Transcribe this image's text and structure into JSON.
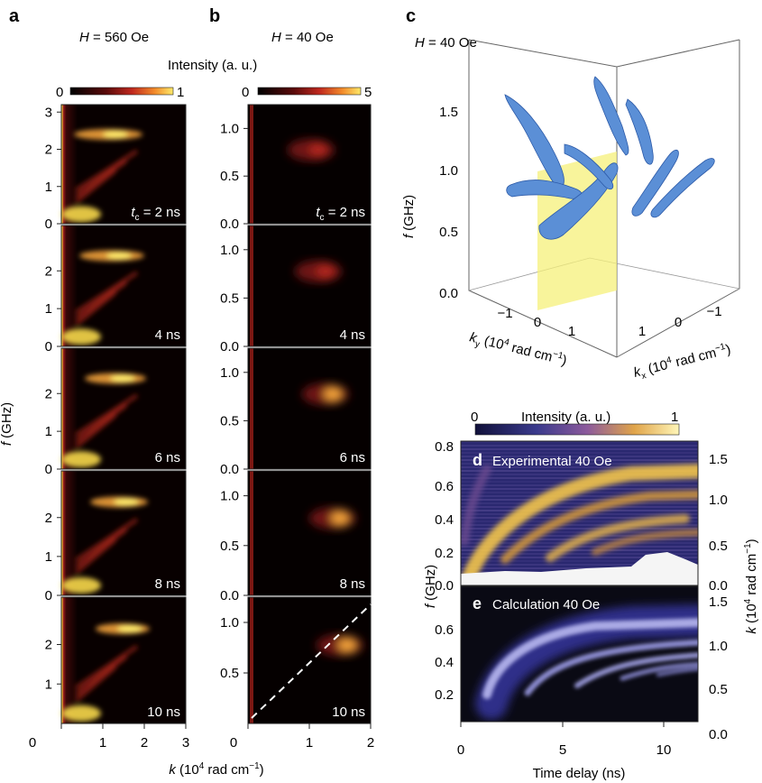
{
  "panel_letters": {
    "a": "a",
    "b": "b",
    "c": "c",
    "d": "d",
    "e": "e"
  },
  "titles": {
    "a_pre": "H",
    "a_post": " = 560 Oe",
    "b_pre": "H",
    "b_post": " = 40 Oe",
    "c_pre": "H",
    "c_post": " = 40 Oe"
  },
  "colorbar_top": {
    "label": "Intensity (a. u.)",
    "a_min": "0",
    "a_max": "1",
    "b_min": "0",
    "b_max": "5"
  },
  "colorbar_de": {
    "label": "Intensity (a. u.)",
    "min": "0",
    "max": "1"
  },
  "time_labels": {
    "tc_pre": "t",
    "tc_sub": "c",
    "first": " = 2 ns",
    "others": [
      "4 ns",
      "6 ns",
      "8 ns",
      "10 ns"
    ]
  },
  "axes_ab": {
    "ylabel_pre": "f",
    "ylabel_post": " (GHz)",
    "xlabel_pre": "k",
    "xlabel_post": " (10",
    "xlabel_sup": "4",
    "xlabel_tail": " rad cm",
    "xlabel_sup2": "−1",
    "xlabel_end": ")"
  },
  "panel_c": {
    "zlabel_pre": "f",
    "zlabel_post": " (GHz)",
    "ky_label": "k",
    "ky_sub": "y",
    "ky_rest": " (10",
    "ky_sup": "4",
    "ky_rest2": " rad cm",
    "ky_sup2": "−1",
    "ky_end": ")",
    "kx_label": "k",
    "kx_sub": "x",
    "kx_rest": " (10",
    "kx_sup": "4",
    "kx_rest2": " rad cm",
    "kx_sup2": "−1",
    "kx_end": ")"
  },
  "panel_de": {
    "d_label": "Experimental 40 Oe",
    "e_label": "Calculation 40 Oe",
    "xlabel": "Time delay (ns)",
    "ylabel_pre": "f",
    "ylabel_post": " (GHz)",
    "ylabel_right_pre": "k",
    "ylabel_right_post": " (10",
    "ylabel_right_sup": "4",
    "ylabel_right_tail": " rad cm",
    "ylabel_right_sup2": "−1",
    "ylabel_right_end": ")"
  },
  "colors": {
    "hot_low": "#000000",
    "hot_mid": "#b2182b",
    "hot_high": "#fde725",
    "plasma_low": "#1a1a5e",
    "plasma_high": "#fff2a0",
    "surface_blue": "#5b8fd6",
    "plane_yellow": "#f5f07a"
  },
  "chart_data": [
    {
      "panel": "a",
      "type": "heatmap",
      "title": "H = 560 Oe",
      "xlabel": "k (10^4 rad cm^-1)",
      "ylabel": "f (GHz)",
      "x_ticks": [
        "0",
        "1",
        "2",
        "3"
      ],
      "xlim": [
        0,
        3
      ],
      "y_ticks": [
        "0",
        "1",
        "2",
        "3"
      ],
      "ylim": [
        0,
        3
      ],
      "colorbar": {
        "min": 0,
        "max": 1,
        "label": "Intensity (a. u.)"
      },
      "subpanels": [
        "t_c = 2 ns",
        "4 ns",
        "6 ns",
        "8 ns",
        "10 ns"
      ]
    },
    {
      "panel": "b",
      "type": "heatmap",
      "title": "H = 40 Oe",
      "xlabel": "k (10^4 rad cm^-1)",
      "ylabel": "f (GHz)",
      "x_ticks": [
        "0",
        "1",
        "2"
      ],
      "xlim": [
        0,
        2
      ],
      "y_ticks": [
        "0.0",
        "0.5",
        "1.0"
      ],
      "ylim": [
        0,
        1.2
      ],
      "colorbar": {
        "min": 0,
        "max": 5,
        "label": "Intensity (a. u.)"
      },
      "subpanels": [
        "t_c = 2 ns",
        "4 ns",
        "6 ns",
        "8 ns",
        "10 ns"
      ]
    },
    {
      "panel": "c",
      "type": "surface3d",
      "title": "H = 40 Oe",
      "z_ticks": [
        "0.0",
        "0.5",
        "1.0",
        "1.5"
      ],
      "ky_ticks": [
        "−1",
        "0",
        "1"
      ],
      "kx_ticks": [
        "1",
        "0",
        "−1"
      ]
    },
    {
      "panel": "d",
      "type": "heatmap",
      "title": "Experimental 40 Oe",
      "xlabel": "Time delay (ns)",
      "ylabel": "f (GHz)",
      "y_ticks": [
        "0.0",
        "0.2",
        "0.4",
        "0.6",
        "0.8"
      ],
      "ylim": [
        0,
        0.8
      ],
      "y2_ticks": [
        "0.0",
        "0.5",
        "1.0",
        "1.5"
      ],
      "colorbar": {
        "min": 0,
        "max": 1
      }
    },
    {
      "panel": "e",
      "type": "heatmap",
      "title": "Calculation 40 Oe",
      "xlabel": "Time delay (ns)",
      "ylabel": "f (GHz)",
      "x_ticks": [
        "0",
        "5",
        "10"
      ],
      "xlim": [
        0,
        12
      ],
      "y_ticks": [
        "0.2",
        "0.4",
        "0.6"
      ],
      "y2_ticks": [
        "0.0",
        "0.5",
        "1.0",
        "1.5"
      ]
    }
  ]
}
